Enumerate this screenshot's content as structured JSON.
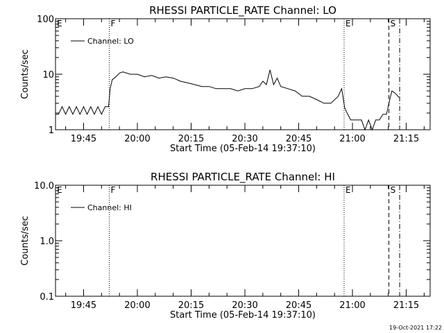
{
  "chart_data": [
    {
      "type": "line",
      "title": "RHESSI PARTICLE_RATE Channel: LO",
      "xlabel": "Start Time (05-Feb-14 19:37:10)",
      "ylabel": "Counts/sec",
      "yscale": "log",
      "ylim": [
        1,
        100
      ],
      "y_ticks": [
        "1",
        "10",
        "100"
      ],
      "x_ticks": [
        "19:45",
        "20:00",
        "20:15",
        "20:30",
        "20:45",
        "21:00",
        "21:15"
      ],
      "legend_label": "Channel: LO",
      "legend_position": "top-left",
      "markers": [
        {
          "label": "E",
          "time": "19:37:10",
          "style": "none"
        },
        {
          "label": "F",
          "time": "19:52:10",
          "style": "dotted"
        },
        {
          "label": "E",
          "time": "20:57:40",
          "style": "dotted"
        },
        {
          "label": "S",
          "time": "21:10:10",
          "style": "dashed"
        },
        {
          "label": "",
          "time": "21:13:10",
          "style": "dashdot"
        }
      ],
      "series": [
        {
          "x": [
            "19:37:10",
            "19:38:00",
            "19:39:00",
            "19:40:00",
            "19:41:00",
            "19:42:00",
            "19:43:00",
            "19:44:00",
            "19:45:00",
            "19:46:00",
            "19:47:00",
            "19:48:00",
            "19:49:00",
            "19:50:00",
            "19:51:00",
            "19:51:58",
            "19:52:25",
            "19:53:00",
            "19:54:00",
            "19:55:00",
            "19:56:00",
            "19:58:00",
            "20:00:00",
            "20:02:00",
            "20:04:00",
            "20:06:00",
            "20:08:00",
            "20:10:00",
            "20:12:00",
            "20:14:00",
            "20:16:00",
            "20:18:00",
            "20:20:00",
            "20:22:00",
            "20:24:00",
            "20:26:00",
            "20:28:00",
            "20:30:00",
            "20:32:00",
            "20:34:00",
            "20:35:00",
            "20:36:00",
            "20:37:00",
            "20:38:00",
            "20:39:00",
            "20:40:00",
            "20:42:00",
            "20:44:00",
            "20:46:00",
            "20:48:00",
            "20:50:00",
            "20:52:00",
            "20:54:00",
            "20:56:00",
            "20:57:00",
            "20:57:50",
            "20:58:30",
            "20:59:30",
            "21:00:30",
            "21:01:30",
            "21:02:30",
            "21:03:30",
            "21:04:30",
            "21:05:30",
            "21:06:30",
            "21:07:30",
            "21:08:30",
            "21:09:30",
            "21:10:10",
            "21:11:00",
            "21:12:00",
            "21:13:00"
          ],
          "y": [
            1.9,
            1.9,
            2.6,
            1.9,
            2.6,
            1.9,
            2.6,
            1.9,
            2.6,
            1.9,
            2.6,
            1.9,
            2.6,
            1.9,
            2.6,
            2.6,
            5.5,
            8.0,
            9.0,
            10.5,
            11.0,
            10.0,
            10.0,
            9.0,
            9.5,
            8.5,
            9.0,
            8.5,
            7.5,
            7.0,
            6.5,
            6.0,
            6.0,
            5.5,
            5.5,
            5.5,
            5.0,
            5.5,
            5.5,
            6.0,
            7.5,
            6.5,
            12.0,
            6.5,
            8.5,
            6.0,
            5.5,
            5.0,
            4.0,
            4.0,
            3.5,
            3.0,
            3.0,
            4.0,
            5.5,
            2.5,
            2.0,
            1.5,
            1.5,
            1.5,
            1.5,
            1.0,
            1.5,
            1.0,
            1.5,
            1.5,
            1.9,
            1.9,
            3.0,
            5.0,
            4.5,
            3.8
          ]
        }
      ]
    },
    {
      "type": "line",
      "title": "RHESSI PARTICLE_RATE Channel: HI",
      "xlabel": "Start Time (05-Feb-14 19:37:10)",
      "ylabel": "Counts/sec",
      "yscale": "log",
      "ylim": [
        0.1,
        10
      ],
      "y_ticks": [
        "0.1",
        "1.0",
        "10.0"
      ],
      "x_ticks": [
        "19:45",
        "20:00",
        "20:15",
        "20:30",
        "20:45",
        "21:00",
        "21:15"
      ],
      "legend_label": "Channel: HI",
      "legend_position": "top-left",
      "markers": [
        {
          "label": "E",
          "time": "19:37:10",
          "style": "none"
        },
        {
          "label": "F",
          "time": "19:52:10",
          "style": "dotted"
        },
        {
          "label": "E",
          "time": "20:57:40",
          "style": "dotted"
        },
        {
          "label": "S",
          "time": "21:10:10",
          "style": "dashed"
        },
        {
          "label": "",
          "time": "21:13:10",
          "style": "dashdot"
        }
      ],
      "series": [
        {
          "x": [],
          "y": []
        }
      ]
    }
  ],
  "footer": {
    "timestamp": "19-Oct-2021 17:22"
  }
}
